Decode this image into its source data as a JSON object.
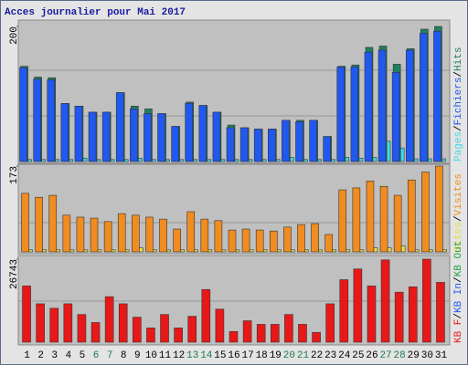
{
  "chart_data": {
    "type": "bar",
    "title": "Acces journalier pour Mai 2017",
    "categories": [
      "1",
      "2",
      "3",
      "4",
      "5",
      "6",
      "7",
      "8",
      "9",
      "10",
      "11",
      "12",
      "13",
      "14",
      "15",
      "16",
      "17",
      "18",
      "19",
      "20",
      "21",
      "22",
      "23",
      "24",
      "25",
      "26",
      "27",
      "28",
      "29",
      "30",
      "31"
    ],
    "category_colors": [
      "#000000",
      "#000000",
      "#000000",
      "#000000",
      "#000000",
      "#1a7a4a",
      "#1a7a4a",
      "#000000",
      "#000000",
      "#000000",
      "#000000",
      "#000000",
      "#1a7a4a",
      "#1a7a4a",
      "#000000",
      "#000000",
      "#000000",
      "#000000",
      "#000000",
      "#1a7a4a",
      "#1a7a4a",
      "#000000",
      "#000000",
      "#000000",
      "#000000",
      "#000000",
      "#1a7a4a",
      "#1a7a4a",
      "#000000",
      "#000000",
      "#000000"
    ],
    "legend_separator": "/",
    "panels": [
      {
        "ylim": [
          0,
          200
        ],
        "yticks": [
          200
        ],
        "series": [
          {
            "name": "Pages",
            "color": "#40d8e8",
            "values": [
              3,
              3,
              3,
              3,
              5,
              3,
              3,
              3,
              5,
              3,
              3,
              3,
              3,
              3,
              3,
              3,
              3,
              3,
              3,
              6,
              3,
              3,
              3,
              6,
              5,
              6,
              30,
              20,
              4,
              4,
              4
            ]
          },
          {
            "name": "Fichiers",
            "color": "#2058f0",
            "values": [
              139,
              122,
              121,
              86,
              82,
              73,
              73,
              102,
              78,
              71,
              71,
              52,
              86,
              83,
              73,
              50,
              50,
              48,
              48,
              61,
              59,
              61,
              37,
              140,
              140,
              162,
              165,
              132,
              165,
              190,
              193
            ]
          },
          {
            "name": "Hits",
            "color": "#208060",
            "values": [
              141,
              125,
              124,
              86,
              82,
              73,
              73,
              102,
              82,
              78,
              71,
              52,
              88,
              83,
              73,
              54,
              50,
              48,
              48,
              61,
              61,
              61,
              37,
              141,
              143,
              169,
              171,
              144,
              167,
              196,
              200
            ]
          }
        ]
      },
      {
        "ylim": [
          0,
          173
        ],
        "yticks": [
          173
        ],
        "series": [
          {
            "name": "Sites",
            "color": "#e8e040",
            "values": [
              4,
              4,
              4,
              4,
              4,
              4,
              4,
              4,
              8,
              4,
              4,
              4,
              4,
              4,
              4,
              4,
              4,
              4,
              4,
              4,
              4,
              4,
              4,
              4,
              4,
              8,
              8,
              12,
              4,
              4,
              4
            ]
          },
          {
            "name": "Visites",
            "color": "#f08c20",
            "values": [
              118,
              110,
              114,
              74,
              70,
              68,
              61,
              77,
              74,
              70,
              66,
              46,
              81,
              66,
              63,
              44,
              46,
              44,
              42,
              50,
              55,
              57,
              35,
              125,
              129,
              143,
              132,
              114,
              145,
              161,
              173
            ]
          }
        ]
      },
      {
        "ylim": [
          0,
          26743
        ],
        "yticks": [
          26743
        ],
        "series": [
          {
            "name": "KB F",
            "color": "#e81818",
            "values": [
              18118,
              12367,
              10929,
              12367,
              8916,
              6327,
              14668,
              12367,
              8053,
              4602,
              8916,
              4602,
              8340,
              16968,
              10641,
              3451,
              6902,
              5752,
              5752,
              8916,
              5752,
              3164,
              12367,
              20132,
              23583,
              18118,
              26500,
              16105,
              17831,
              26743,
              19269
            ]
          },
          {
            "name": "KB In",
            "color": "#2058f0",
            "values": [
              null,
              null,
              null,
              null,
              null,
              null,
              null,
              null,
              null,
              null,
              null,
              null,
              null,
              null,
              null,
              null,
              null,
              null,
              null,
              null,
              null,
              null,
              null,
              null,
              null,
              null,
              null,
              null,
              null,
              null,
              null
            ]
          },
          {
            "name": "KB Out",
            "color": "#20a040",
            "values": [
              null,
              null,
              null,
              null,
              null,
              null,
              null,
              null,
              null,
              null,
              null,
              null,
              null,
              null,
              null,
              null,
              null,
              null,
              null,
              null,
              null,
              null,
              null,
              null,
              null,
              null,
              null,
              null,
              null,
              null,
              null
            ]
          }
        ]
      }
    ]
  }
}
